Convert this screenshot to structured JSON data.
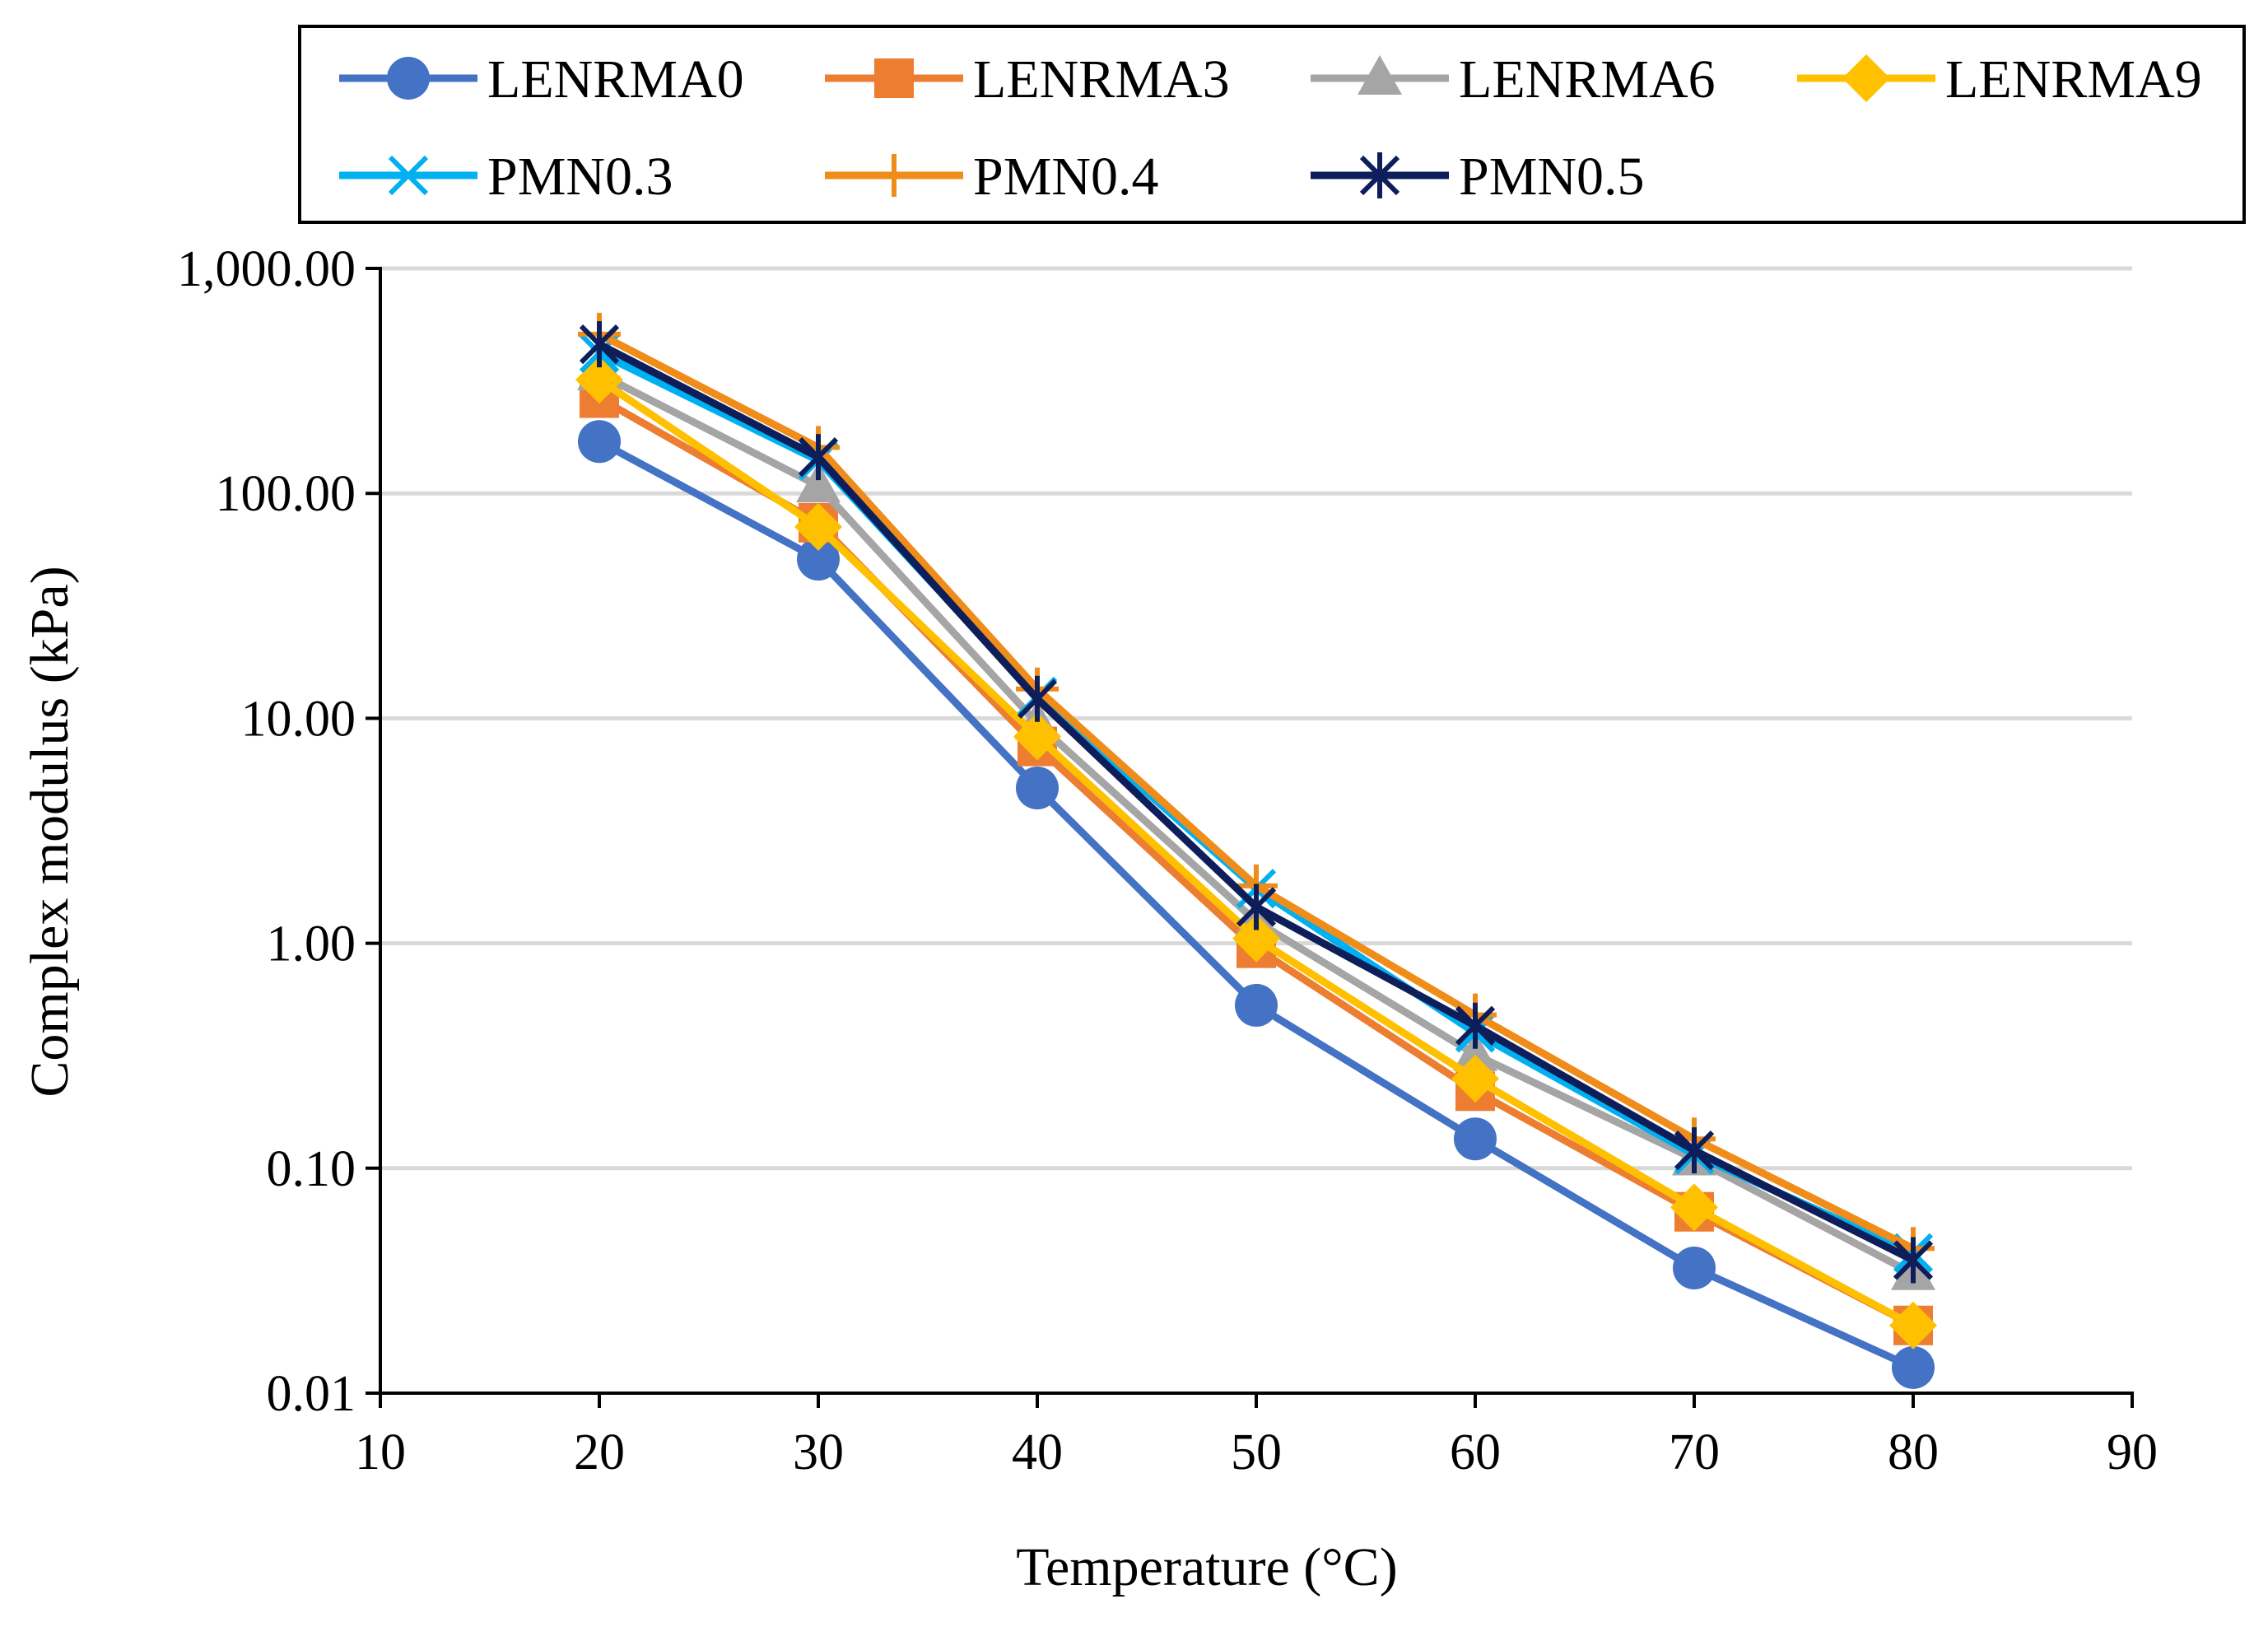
{
  "chart_data": {
    "type": "line",
    "title": "",
    "xlabel": "Temperature (°C)",
    "ylabel": "Complex modulus (kPa)",
    "xlim": [
      10,
      90
    ],
    "ylim": [
      0.01,
      1000
    ],
    "yscale": "log",
    "grid": true,
    "legend_position": "top",
    "x": [
      20,
      30,
      40,
      50,
      60,
      70,
      80
    ],
    "x_tick_labels": [
      "10",
      "20",
      "30",
      "40",
      "50",
      "60",
      "70",
      "80",
      "90"
    ],
    "y_tick_labels": [
      "1,000.00",
      "100.00",
      "10.00",
      "1.00",
      "0.10",
      "0.01"
    ],
    "series": [
      {
        "name": "LENRMA0",
        "color": "#4472C4",
        "marker": "circle",
        "values": [
          170,
          51,
          4.9,
          0.53,
          0.135,
          0.036,
          0.013
        ]
      },
      {
        "name": "LENRMA3",
        "color": "#ED7D31",
        "marker": "square",
        "values": [
          265,
          74,
          7.5,
          0.95,
          0.22,
          0.064,
          0.02
        ]
      },
      {
        "name": "LENRMA6",
        "color": "#A5A5A5",
        "marker": "triangle",
        "values": [
          340,
          108,
          9.5,
          1.25,
          0.32,
          0.11,
          0.034
        ]
      },
      {
        "name": "LENRMA9",
        "color": "#FFC000",
        "marker": "diamond",
        "values": [
          320,
          71,
          8.3,
          1.05,
          0.25,
          0.067,
          0.02
        ]
      },
      {
        "name": "PMN0.3",
        "color": "#00B0F0",
        "marker": "x",
        "values": [
          420,
          140,
          12.5,
          1.75,
          0.4,
          0.115,
          0.042
        ]
      },
      {
        "name": "PMN0.4",
        "color": "#F08C1A",
        "marker": "plus",
        "values": [
          510,
          160,
          13.5,
          1.8,
          0.48,
          0.135,
          0.044
        ]
      },
      {
        "name": "PMN0.5",
        "color": "#0D1E5B",
        "marker": "star",
        "values": [
          460,
          145,
          12.2,
          1.45,
          0.43,
          0.12,
          0.039
        ]
      }
    ]
  }
}
